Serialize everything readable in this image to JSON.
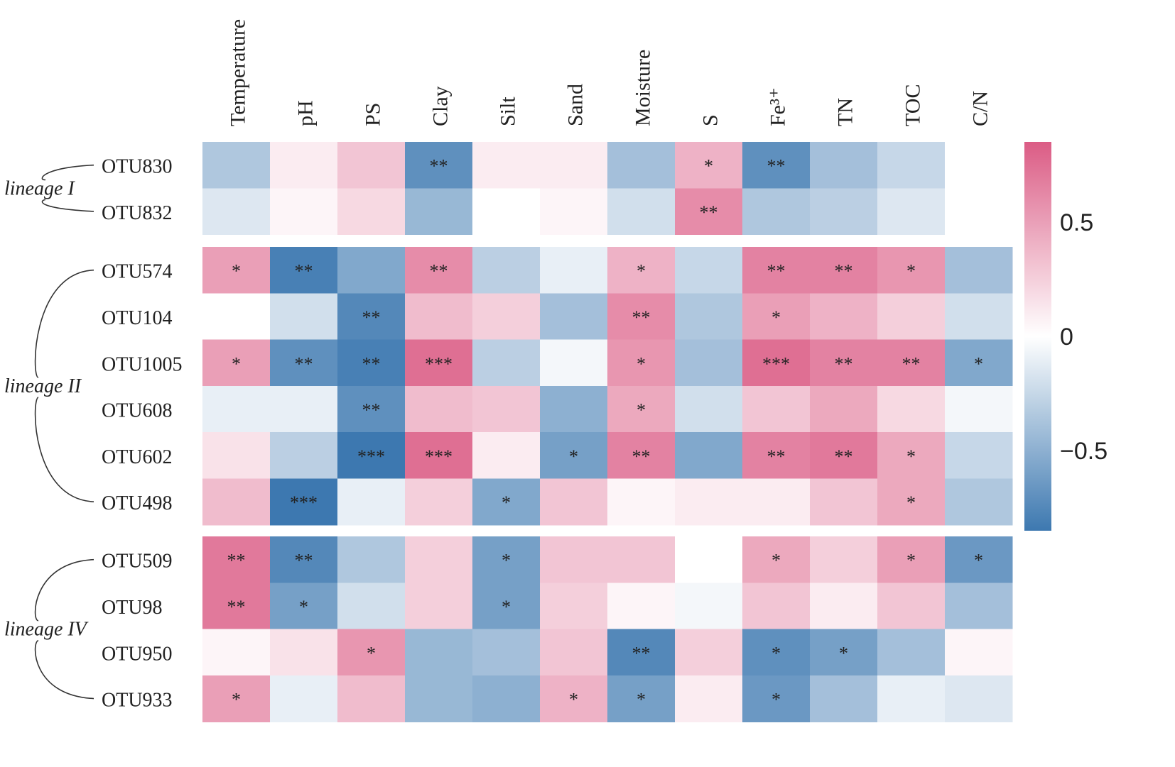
{
  "chart_data": {
    "type": "heatmap",
    "columns": [
      "Temperature",
      "pH",
      "PS",
      "Clay",
      "Silt",
      "Sand",
      "Moisture",
      "S",
      "Fe³⁺",
      "TN",
      "TOC",
      "C/N"
    ],
    "groups": [
      {
        "label": "lineage I",
        "rows": [
          {
            "name": "OTU830",
            "values": [
              -0.35,
              0.1,
              0.3,
              -0.7,
              0.1,
              0.1,
              -0.4,
              0.4,
              -0.7,
              -0.4,
              -0.25,
              0.0
            ],
            "sig": [
              "",
              "",
              "",
              "**",
              "",
              "",
              "",
              "*",
              "**",
              "",
              "",
              ""
            ]
          },
          {
            "name": "OTU832",
            "values": [
              -0.15,
              0.05,
              0.2,
              -0.45,
              0.0,
              0.05,
              -0.2,
              0.6,
              -0.35,
              -0.3,
              -0.15,
              0.0
            ],
            "sig": [
              "",
              "",
              "",
              "",
              "",
              "",
              "",
              "**",
              "",
              "",
              "",
              ""
            ]
          }
        ]
      },
      {
        "label": "lineage II",
        "rows": [
          {
            "name": "OTU574",
            "values": [
              0.5,
              -0.8,
              -0.55,
              0.6,
              -0.3,
              -0.1,
              0.4,
              -0.25,
              0.65,
              0.65,
              0.55,
              -0.4
            ],
            "sig": [
              "*",
              "**",
              "",
              "**",
              "",
              "",
              "*",
              "",
              "**",
              "**",
              "*",
              ""
            ]
          },
          {
            "name": "OTU104",
            "values": [
              0.0,
              -0.2,
              -0.75,
              0.35,
              0.25,
              -0.4,
              0.6,
              -0.35,
              0.5,
              0.4,
              0.25,
              -0.2
            ],
            "sig": [
              "",
              "",
              "**",
              "",
              "",
              "",
              "**",
              "",
              "*",
              "",
              "",
              ""
            ]
          },
          {
            "name": "OTU1005",
            "values": [
              0.5,
              -0.7,
              -0.8,
              0.75,
              -0.3,
              -0.05,
              0.55,
              -0.4,
              0.75,
              0.65,
              0.65,
              -0.55
            ],
            "sig": [
              "*",
              "**",
              "**",
              "***",
              "",
              "",
              "*",
              "",
              "***",
              "**",
              "**",
              "*"
            ]
          },
          {
            "name": "OTU608",
            "values": [
              -0.1,
              -0.1,
              -0.7,
              0.35,
              0.3,
              -0.5,
              0.45,
              -0.2,
              0.3,
              0.45,
              0.2,
              -0.05
            ],
            "sig": [
              "",
              "",
              "**",
              "",
              "",
              "",
              "*",
              "",
              "",
              "",
              "",
              ""
            ]
          },
          {
            "name": "OTU602",
            "values": [
              0.15,
              -0.3,
              -0.9,
              0.75,
              0.1,
              -0.6,
              0.65,
              -0.55,
              0.65,
              0.7,
              0.45,
              -0.25
            ],
            "sig": [
              "",
              "",
              "***",
              "***",
              "",
              "*",
              "**",
              "",
              "**",
              "**",
              "*",
              ""
            ]
          },
          {
            "name": "OTU498",
            "values": [
              0.35,
              -0.9,
              -0.1,
              0.25,
              -0.55,
              0.3,
              0.05,
              0.1,
              0.1,
              0.3,
              0.45,
              -0.35
            ],
            "sig": [
              "",
              "***",
              "",
              "",
              "*",
              "",
              "",
              "",
              "",
              "",
              "*",
              ""
            ]
          }
        ]
      },
      {
        "label": "lineage IV",
        "rows": [
          {
            "name": "OTU509",
            "values": [
              0.7,
              -0.75,
              -0.35,
              0.25,
              -0.6,
              0.3,
              0.3,
              0.0,
              0.45,
              0.25,
              0.5,
              -0.65
            ],
            "sig": [
              "**",
              "**",
              "",
              "",
              "*",
              "",
              "",
              "",
              "*",
              "",
              "*",
              "*"
            ]
          },
          {
            "name": "OTU98",
            "values": [
              0.7,
              -0.6,
              -0.2,
              0.25,
              -0.6,
              0.25,
              0.05,
              -0.05,
              0.3,
              0.1,
              0.3,
              -0.4
            ],
            "sig": [
              "**",
              "*",
              "",
              "",
              "*",
              "",
              "",
              "",
              "",
              "",
              "",
              ""
            ]
          },
          {
            "name": "OTU950",
            "values": [
              0.05,
              0.15,
              0.55,
              -0.45,
              -0.4,
              0.3,
              -0.75,
              0.25,
              -0.7,
              -0.6,
              -0.4,
              0.05
            ],
            "sig": [
              "",
              "",
              "*",
              "",
              "",
              "",
              "**",
              "",
              "*",
              "*",
              "",
              ""
            ]
          },
          {
            "name": "OTU933",
            "values": [
              0.5,
              -0.1,
              0.35,
              -0.45,
              -0.5,
              0.4,
              -0.6,
              0.1,
              -0.65,
              -0.4,
              -0.1,
              -0.15
            ],
            "sig": [
              "*",
              "",
              "",
              "",
              "",
              "*",
              "*",
              "",
              "*",
              "",
              "",
              ""
            ]
          }
        ]
      }
    ],
    "colorbar": {
      "range": [
        -0.85,
        0.85
      ],
      "ticks": [
        {
          "value": 0.5,
          "label": "0.5"
        },
        {
          "value": 0,
          "label": "0"
        },
        {
          "value": -0.5,
          "label": "−0.5"
        }
      ],
      "colors": {
        "negative": "#3d78b0",
        "neutral": "#ffffff",
        "positive": "#db5c85"
      }
    },
    "grid": false
  }
}
